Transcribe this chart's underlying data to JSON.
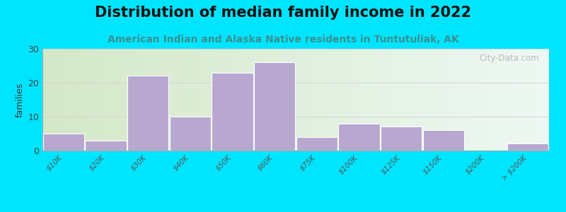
{
  "title": "Distribution of median family income in 2022",
  "subtitle": "American Indian and Alaska Native residents in Tuntutuliak, AK",
  "ylabel": "families",
  "categories": [
    "$10K",
    "$20K",
    "$30K",
    "$40K",
    "$50K",
    "$60K",
    "$75K",
    "$100K",
    "$125K",
    "$150K",
    "$200K",
    "> $200K"
  ],
  "values": [
    5,
    3,
    22,
    10,
    23,
    26,
    4,
    8,
    7,
    6,
    0,
    2
  ],
  "bar_color": "#b8a8d0",
  "bar_edge_color": "#ffffff",
  "background_color": "#00e5ff",
  "plot_bg_left": "#d4e8c8",
  "plot_bg_right": "#eef8f4",
  "ylim": [
    0,
    30
  ],
  "yticks": [
    0,
    10,
    20,
    30
  ],
  "title_fontsize": 15,
  "subtitle_fontsize": 10,
  "subtitle_color": "#3a9090",
  "watermark": "City-Data.com"
}
